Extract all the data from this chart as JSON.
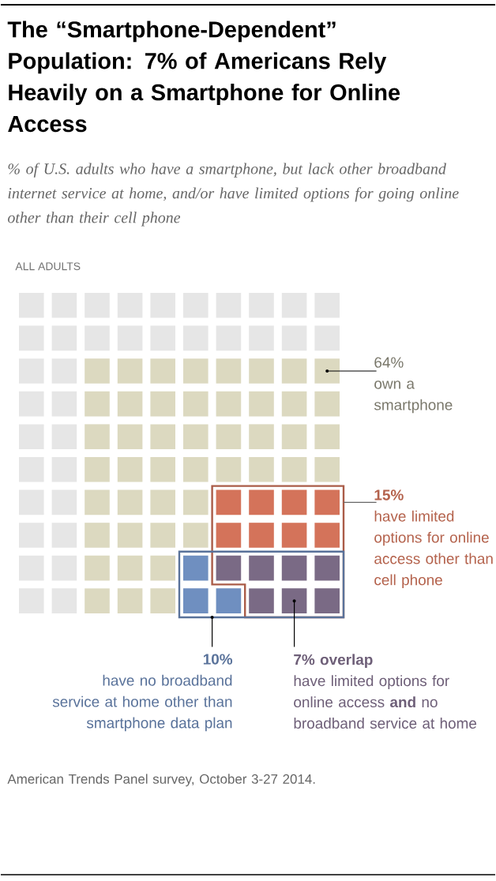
{
  "chart_data": {
    "type": "other",
    "title": "The “Smartphone-Dependent” Population: 7% of Americans Rely Heavily on a Smartphone for Online Access",
    "subtitle": "% of U.S. adults who have a smartphone, but lack other broadband internet service at home, and/or have limited options for going online other than their cell phone",
    "categories": [
      "own a smartphone",
      "have limited options for online access other than cell phone",
      "have no broadband service at home other than smartphone data plan",
      "have limited options for online access **and** no broadband service at home"
    ],
    "values": [
      64,
      15,
      10,
      7
    ],
    "value_labels": [
      "64%",
      "15%",
      "10%",
      "7% overlap"
    ],
    "colors": [
      "#dcd9c0",
      "#d4735a",
      "#6f8fc0",
      "#7a6a85"
    ],
    "annotations": [
      "ALL ADULTS",
      "American Trends Panel survey, October 3-27 2014."
    ]
  }
}
